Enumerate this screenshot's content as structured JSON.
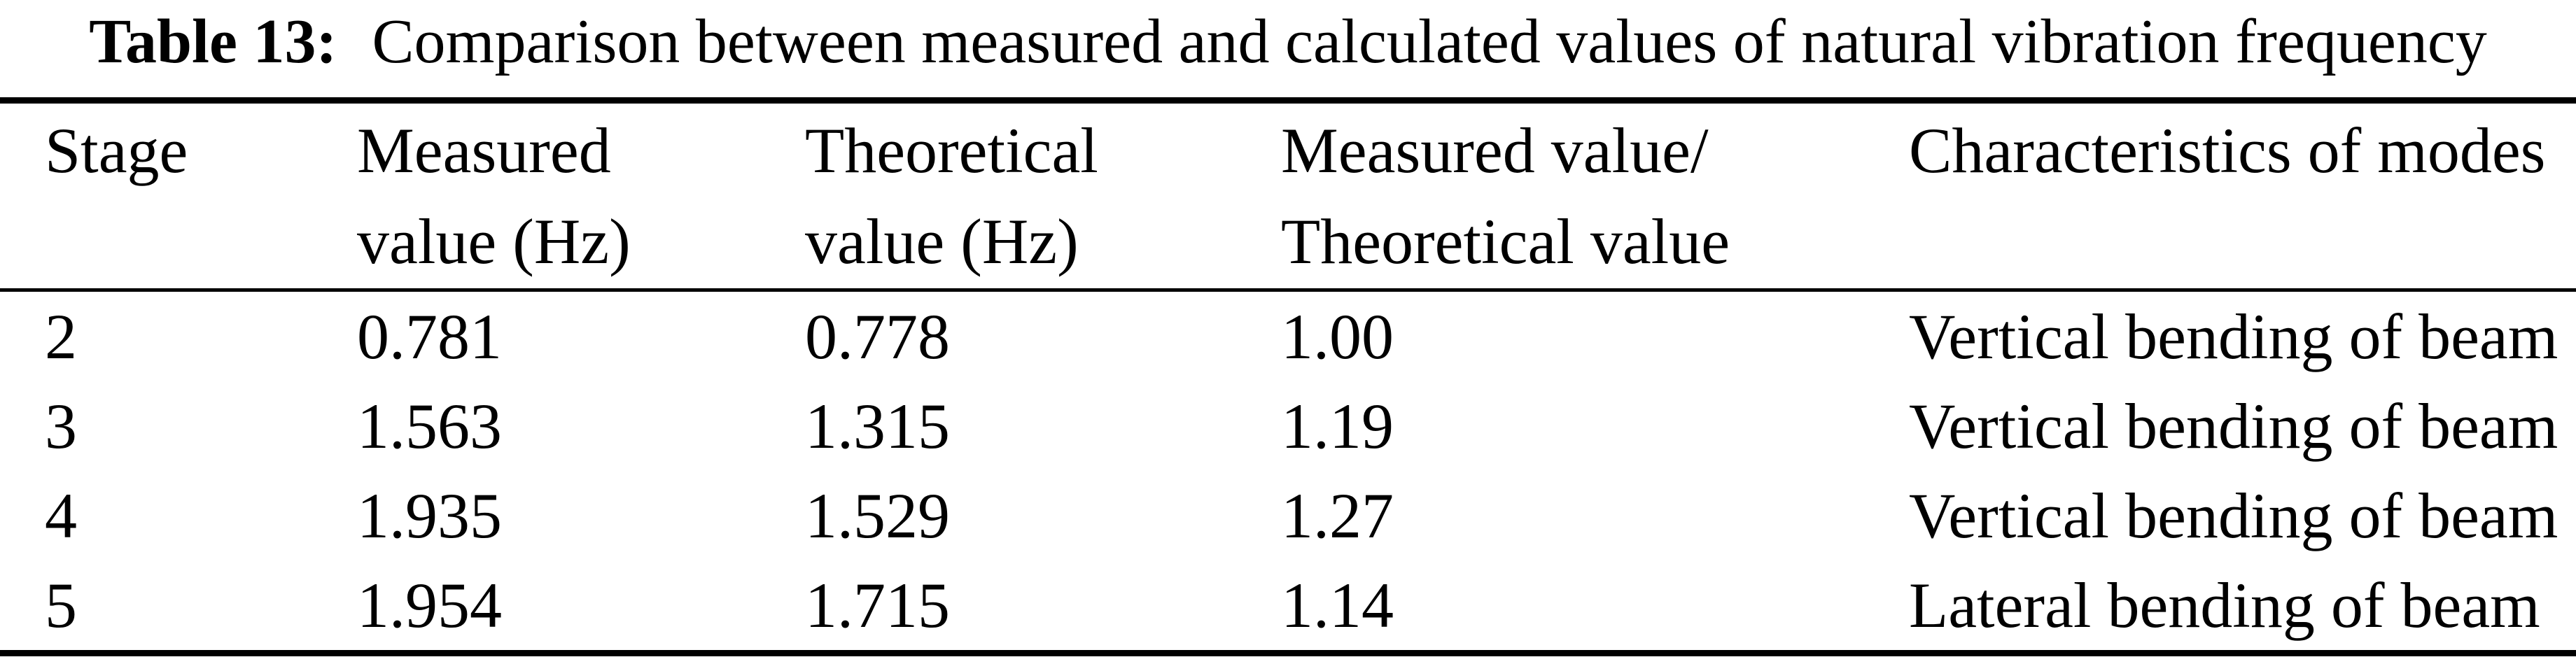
{
  "caption": {
    "label": "Table 13:",
    "text": "Comparison between measured and calculated values of natural vibration frequency"
  },
  "table": {
    "columns": [
      {
        "line1": "Stage",
        "line2": ""
      },
      {
        "line1": "Measured",
        "line2": "value (Hz)"
      },
      {
        "line1": "Theoretical",
        "line2": "value (Hz)"
      },
      {
        "line1": "Measured value/",
        "line2": "Theoretical value"
      },
      {
        "line1": "Characteristics of modes",
        "line2": ""
      }
    ],
    "rows": [
      {
        "stage": "2",
        "measured": "0.781",
        "theoretical": "0.778",
        "ratio": "1.00",
        "mode": "Vertical bending of beam"
      },
      {
        "stage": "3",
        "measured": "1.563",
        "theoretical": "1.315",
        "ratio": "1.19",
        "mode": "Vertical bending of beam"
      },
      {
        "stage": "4",
        "measured": "1.935",
        "theoretical": "1.529",
        "ratio": "1.27",
        "mode": "Vertical bending of beam"
      },
      {
        "stage": "5",
        "measured": "1.954",
        "theoretical": "1.715",
        "ratio": "1.14",
        "mode": "Lateral bending of beam"
      }
    ]
  },
  "colors": {
    "background": "#ffffff",
    "text": "#000000",
    "rule": "#000000"
  }
}
